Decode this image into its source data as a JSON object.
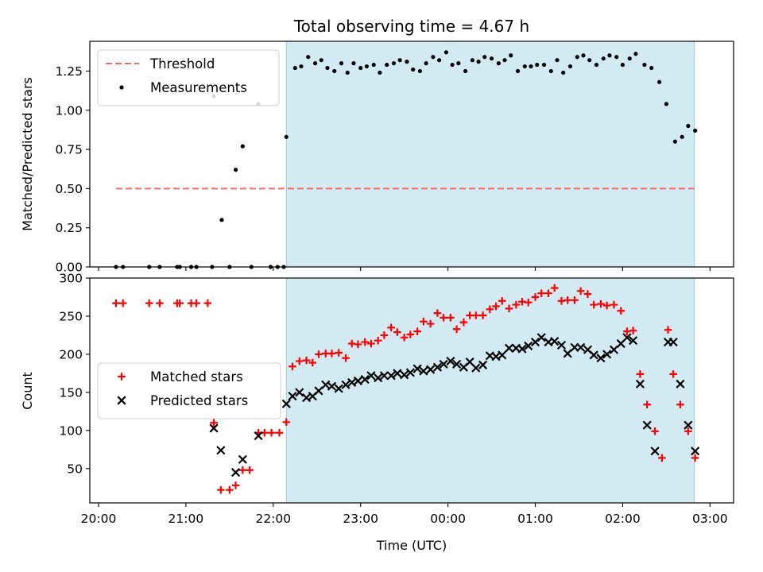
{
  "chart_data": {
    "title": "Total observing time = 4.67 h",
    "xlabel": "Time (UTC)",
    "x_ticks": [
      "20:00",
      "21:00",
      "22:00",
      "23:00",
      "00:00",
      "01:00",
      "02:00",
      "03:00"
    ],
    "x_tick_hours": [
      20,
      21,
      22,
      23,
      24,
      25,
      26,
      27
    ],
    "xlim_hours": [
      19.9,
      27.27
    ],
    "shaded_span_hours": [
      22.15,
      26.82
    ],
    "shade_color": "#add8e6",
    "panels": [
      {
        "type": "scatter",
        "ylabel": "Matched/Predicted stars",
        "ylim": [
          0,
          1.44
        ],
        "y_ticks": [
          "0.00",
          "0.25",
          "0.50",
          "0.75",
          "1.00",
          "1.25"
        ],
        "y_tick_values": [
          0,
          0.25,
          0.5,
          0.75,
          1.0,
          1.25
        ],
        "legend_position": "upper-left",
        "threshold": {
          "name": "Threshold",
          "y": 0.5,
          "x_range": [
            20.2,
            26.82
          ],
          "color": "#ff6666"
        },
        "series": [
          {
            "name": "Measurements",
            "marker": "dot",
            "color": "#000000",
            "points": [
              [
                20.2,
                0
              ],
              [
                20.28,
                0
              ],
              [
                20.58,
                0
              ],
              [
                20.7,
                0
              ],
              [
                20.9,
                0
              ],
              [
                20.93,
                0
              ],
              [
                21.06,
                0
              ],
              [
                21.12,
                0
              ],
              [
                21.3,
                0
              ],
              [
                21.5,
                0
              ],
              [
                21.75,
                0
              ],
              [
                21.97,
                0
              ],
              [
                22.05,
                0
              ],
              [
                22.12,
                0
              ],
              [
                21.32,
                1.09
              ],
              [
                21.41,
                0.3
              ],
              [
                21.57,
                0.62
              ],
              [
                21.65,
                0.77
              ],
              [
                21.83,
                1.04
              ],
              [
                22.15,
                0.83
              ],
              [
                22.25,
                1.27
              ],
              [
                22.32,
                1.28
              ],
              [
                22.4,
                1.34
              ],
              [
                22.48,
                1.3
              ],
              [
                22.55,
                1.32
              ],
              [
                22.62,
                1.27
              ],
              [
                22.7,
                1.25
              ],
              [
                22.78,
                1.3
              ],
              [
                22.85,
                1.24
              ],
              [
                22.92,
                1.3
              ],
              [
                23.0,
                1.27
              ],
              [
                23.07,
                1.28
              ],
              [
                23.15,
                1.29
              ],
              [
                23.22,
                1.24
              ],
              [
                23.3,
                1.29
              ],
              [
                23.38,
                1.3
              ],
              [
                23.45,
                1.32
              ],
              [
                23.53,
                1.31
              ],
              [
                23.6,
                1.26
              ],
              [
                23.68,
                1.25
              ],
              [
                23.75,
                1.3
              ],
              [
                23.83,
                1.34
              ],
              [
                23.9,
                1.32
              ],
              [
                23.98,
                1.37
              ],
              [
                24.05,
                1.29
              ],
              [
                24.12,
                1.3
              ],
              [
                24.2,
                1.25
              ],
              [
                24.28,
                1.32
              ],
              [
                24.35,
                1.31
              ],
              [
                24.42,
                1.34
              ],
              [
                24.5,
                1.33
              ],
              [
                24.58,
                1.3
              ],
              [
                24.65,
                1.32
              ],
              [
                24.72,
                1.35
              ],
              [
                24.8,
                1.25
              ],
              [
                24.88,
                1.28
              ],
              [
                24.95,
                1.28
              ],
              [
                25.02,
                1.29
              ],
              [
                25.1,
                1.29
              ],
              [
                25.18,
                1.25
              ],
              [
                25.25,
                1.32
              ],
              [
                25.32,
                1.24
              ],
              [
                25.4,
                1.28
              ],
              [
                25.48,
                1.34
              ],
              [
                25.55,
                1.35
              ],
              [
                25.62,
                1.32
              ],
              [
                25.7,
                1.29
              ],
              [
                25.78,
                1.33
              ],
              [
                25.85,
                1.35
              ],
              [
                25.93,
                1.34
              ],
              [
                26.0,
                1.29
              ],
              [
                26.08,
                1.33
              ],
              [
                26.15,
                1.36
              ],
              [
                26.25,
                1.29
              ],
              [
                26.33,
                1.27
              ],
              [
                26.42,
                1.18
              ],
              [
                26.5,
                1.04
              ],
              [
                26.6,
                0.8
              ],
              [
                26.68,
                0.83
              ],
              [
                26.75,
                0.9
              ],
              [
                26.83,
                0.87
              ]
            ]
          }
        ]
      },
      {
        "type": "scatter",
        "ylabel": "Count",
        "ylim": [
          5,
          300
        ],
        "y_ticks": [
          "50",
          "100",
          "150",
          "200",
          "250",
          "300"
        ],
        "y_tick_values": [
          50,
          100,
          150,
          200,
          250,
          300
        ],
        "legend_position": "center-left",
        "series": [
          {
            "name": "Matched stars",
            "marker": "plus",
            "color": "#ff0000",
            "points": [
              [
                20.2,
                267
              ],
              [
                20.28,
                267
              ],
              [
                20.58,
                267
              ],
              [
                20.7,
                267
              ],
              [
                20.9,
                267
              ],
              [
                20.93,
                267
              ],
              [
                21.06,
                267
              ],
              [
                21.12,
                267
              ],
              [
                21.25,
                267
              ],
              [
                21.32,
                110
              ],
              [
                21.4,
                22
              ],
              [
                21.5,
                22
              ],
              [
                21.57,
                28
              ],
              [
                21.65,
                48
              ],
              [
                21.73,
                48
              ],
              [
                21.83,
                97
              ],
              [
                21.9,
                97
              ],
              [
                21.98,
                97
              ],
              [
                22.07,
                97
              ],
              [
                22.15,
                111
              ],
              [
                22.22,
                184
              ],
              [
                22.3,
                191
              ],
              [
                22.38,
                192
              ],
              [
                22.45,
                189
              ],
              [
                22.52,
                200
              ],
              [
                22.6,
                201
              ],
              [
                22.67,
                201
              ],
              [
                22.75,
                202
              ],
              [
                22.83,
                195
              ],
              [
                22.9,
                214
              ],
              [
                22.97,
                213
              ],
              [
                23.05,
                216
              ],
              [
                23.12,
                214
              ],
              [
                23.2,
                218
              ],
              [
                23.27,
                225
              ],
              [
                23.35,
                235
              ],
              [
                23.42,
                229
              ],
              [
                23.5,
                222
              ],
              [
                23.57,
                226
              ],
              [
                23.65,
                230
              ],
              [
                23.72,
                243
              ],
              [
                23.8,
                240
              ],
              [
                23.88,
                254
              ],
              [
                23.95,
                248
              ],
              [
                24.03,
                248
              ],
              [
                24.1,
                233
              ],
              [
                24.18,
                242
              ],
              [
                24.25,
                251
              ],
              [
                24.32,
                251
              ],
              [
                24.4,
                251
              ],
              [
                24.48,
                259
              ],
              [
                24.55,
                263
              ],
              [
                24.62,
                270
              ],
              [
                24.7,
                260
              ],
              [
                24.78,
                265
              ],
              [
                24.85,
                269
              ],
              [
                24.92,
                268
              ],
              [
                25.0,
                275
              ],
              [
                25.07,
                280
              ],
              [
                25.15,
                280
              ],
              [
                25.22,
                287
              ],
              [
                25.3,
                270
              ],
              [
                25.37,
                271
              ],
              [
                25.45,
                271
              ],
              [
                25.52,
                283
              ],
              [
                25.6,
                279
              ],
              [
                25.67,
                265
              ],
              [
                25.75,
                266
              ],
              [
                25.82,
                264
              ],
              [
                25.9,
                265
              ],
              [
                25.98,
                257
              ],
              [
                26.05,
                230
              ],
              [
                26.12,
                231
              ],
              [
                26.2,
                174
              ],
              [
                26.28,
                134
              ],
              [
                26.37,
                99
              ],
              [
                26.45,
                64
              ],
              [
                26.52,
                232
              ],
              [
                26.58,
                174
              ],
              [
                26.66,
                134
              ],
              [
                26.75,
                99
              ],
              [
                26.83,
                64
              ]
            ]
          },
          {
            "name": "Predicted stars",
            "marker": "x",
            "color": "#000000",
            "points": [
              [
                21.32,
                103
              ],
              [
                21.4,
                74
              ],
              [
                21.57,
                45
              ],
              [
                21.65,
                62
              ],
              [
                21.83,
                93
              ],
              [
                22.15,
                135
              ],
              [
                22.22,
                145
              ],
              [
                22.3,
                150
              ],
              [
                22.38,
                143
              ],
              [
                22.45,
                145
              ],
              [
                22.52,
                152
              ],
              [
                22.6,
                160
              ],
              [
                22.67,
                158
              ],
              [
                22.75,
                155
              ],
              [
                22.83,
                160
              ],
              [
                22.9,
                163
              ],
              [
                22.97,
                165
              ],
              [
                23.05,
                167
              ],
              [
                23.12,
                172
              ],
              [
                23.2,
                169
              ],
              [
                23.27,
                172
              ],
              [
                23.35,
                172
              ],
              [
                23.42,
                175
              ],
              [
                23.5,
                173
              ],
              [
                23.57,
                176
              ],
              [
                23.65,
                181
              ],
              [
                23.72,
                178
              ],
              [
                23.8,
                180
              ],
              [
                23.88,
                183
              ],
              [
                23.95,
                187
              ],
              [
                24.03,
                191
              ],
              [
                24.1,
                187
              ],
              [
                24.18,
                183
              ],
              [
                24.25,
                190
              ],
              [
                24.32,
                182
              ],
              [
                24.4,
                186
              ],
              [
                24.48,
                198
              ],
              [
                24.55,
                197
              ],
              [
                24.62,
                199
              ],
              [
                24.7,
                208
              ],
              [
                24.78,
                208
              ],
              [
                24.85,
                207
              ],
              [
                24.92,
                211
              ],
              [
                25.0,
                216
              ],
              [
                25.07,
                222
              ],
              [
                25.15,
                216
              ],
              [
                25.22,
                217
              ],
              [
                25.3,
                212
              ],
              [
                25.37,
                201
              ],
              [
                25.45,
                209
              ],
              [
                25.52,
                209
              ],
              [
                25.6,
                206
              ],
              [
                25.67,
                199
              ],
              [
                25.75,
                195
              ],
              [
                25.82,
                200
              ],
              [
                25.9,
                206
              ],
              [
                25.98,
                214
              ],
              [
                26.05,
                222
              ],
              [
                26.12,
                218
              ],
              [
                26.2,
                161
              ],
              [
                26.28,
                107
              ],
              [
                26.37,
                73
              ],
              [
                26.52,
                216
              ],
              [
                26.58,
                216
              ],
              [
                26.66,
                161
              ],
              [
                26.75,
                107
              ],
              [
                26.83,
                73
              ]
            ]
          }
        ]
      }
    ]
  }
}
